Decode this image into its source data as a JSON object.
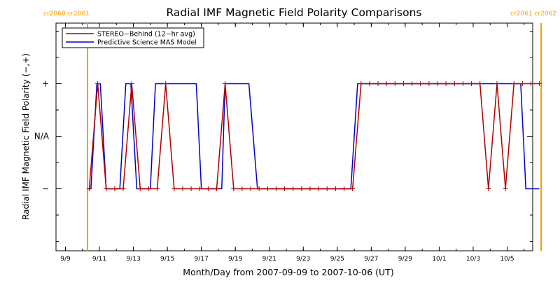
{
  "chart_data": {
    "type": "line",
    "title": "Radial IMF Magnetic Field Polarity Comparisons",
    "xlabel": "Month/Day from 2007-09-09 to 2007-10-06 (UT)",
    "ylabel": "Radial IMF Magnetic Field Polarity (−,+)",
    "xlim_days": [
      0,
      28
    ],
    "x_ticks": [
      {
        "day": 0,
        "label": "9/9"
      },
      {
        "day": 2,
        "label": "9/11"
      },
      {
        "day": 4,
        "label": "9/13"
      },
      {
        "day": 6,
        "label": "9/15"
      },
      {
        "day": 8,
        "label": "9/17"
      },
      {
        "day": 10,
        "label": "9/19"
      },
      {
        "day": 12,
        "label": "9/21"
      },
      {
        "day": 14,
        "label": "9/23"
      },
      {
        "day": 16,
        "label": "9/25"
      },
      {
        "day": 18,
        "label": "9/27"
      },
      {
        "day": 20,
        "label": "9/29"
      },
      {
        "day": 22,
        "label": "10/1"
      },
      {
        "day": 24,
        "label": "10/3"
      },
      {
        "day": 26,
        "label": "10/5"
      }
    ],
    "y_levels": [
      {
        "value": 1,
        "label": "+"
      },
      {
        "value": 0,
        "label": "N/A"
      },
      {
        "value": -1,
        "label": "−"
      }
    ],
    "ylim": [
      -2,
      2
    ],
    "carrington_markers": [
      {
        "day": 1.3,
        "label": "cr2060 cr2061"
      },
      {
        "day": 28.0,
        "label": "cr2061 cr2062"
      }
    ],
    "legend": {
      "position": "top-left",
      "entries": [
        {
          "label": "STEREO−Behind (12−hr avg)",
          "color": "#b00000"
        },
        {
          "label": "Predictive Science MAS Model",
          "color": "#0000cc"
        }
      ]
    },
    "colors": {
      "stereo": "#b00000",
      "model": "#0000cc",
      "marker": "#ff9900"
    },
    "series": [
      {
        "name": "STEREO−Behind (12−hr avg)",
        "marker": "plus",
        "points": [
          [
            1.4,
            -1
          ],
          [
            1.9,
            1
          ],
          [
            2.4,
            -1
          ],
          [
            2.9,
            -1
          ],
          [
            3.4,
            -1
          ],
          [
            3.9,
            1
          ],
          [
            4.4,
            -1
          ],
          [
            4.9,
            -1
          ],
          [
            5.4,
            -1
          ],
          [
            5.9,
            1
          ],
          [
            6.4,
            -1
          ],
          [
            6.9,
            -1
          ],
          [
            7.4,
            -1
          ],
          [
            7.9,
            -1
          ],
          [
            8.4,
            -1
          ],
          [
            8.9,
            -1
          ],
          [
            9.4,
            1
          ],
          [
            9.9,
            -1
          ],
          [
            10.4,
            -1
          ],
          [
            10.9,
            -1
          ],
          [
            11.4,
            -1
          ],
          [
            11.9,
            -1
          ],
          [
            12.4,
            -1
          ],
          [
            12.9,
            -1
          ],
          [
            13.4,
            -1
          ],
          [
            13.9,
            -1
          ],
          [
            14.4,
            -1
          ],
          [
            14.9,
            -1
          ],
          [
            15.4,
            -1
          ],
          [
            15.9,
            -1
          ],
          [
            16.4,
            -1
          ],
          [
            16.9,
            -1
          ],
          [
            17.4,
            1
          ],
          [
            17.9,
            1
          ],
          [
            18.4,
            1
          ],
          [
            18.9,
            1
          ],
          [
            19.4,
            1
          ],
          [
            19.9,
            1
          ],
          [
            20.4,
            1
          ],
          [
            20.9,
            1
          ],
          [
            21.4,
            1
          ],
          [
            21.9,
            1
          ],
          [
            22.4,
            1
          ],
          [
            22.9,
            1
          ],
          [
            23.4,
            1
          ],
          [
            23.9,
            1
          ],
          [
            24.4,
            1
          ],
          [
            24.9,
            -1
          ],
          [
            25.4,
            1
          ],
          [
            25.9,
            -1
          ],
          [
            26.4,
            1
          ],
          [
            26.9,
            1
          ],
          [
            27.4,
            1
          ],
          [
            27.9,
            1
          ]
        ]
      },
      {
        "name": "Predictive Science MAS Model",
        "marker": "none",
        "points": [
          [
            1.3,
            -1
          ],
          [
            1.5,
            -1
          ],
          [
            1.85,
            1
          ],
          [
            2.05,
            1
          ],
          [
            2.4,
            -1
          ],
          [
            3.2,
            -1
          ],
          [
            3.55,
            1
          ],
          [
            3.85,
            1
          ],
          [
            4.2,
            -1
          ],
          [
            5.0,
            -1
          ],
          [
            5.3,
            1
          ],
          [
            7.7,
            1
          ],
          [
            8.0,
            -1
          ],
          [
            9.2,
            -1
          ],
          [
            9.4,
            1
          ],
          [
            10.8,
            1
          ],
          [
            11.3,
            -1
          ],
          [
            16.8,
            -1
          ],
          [
            17.2,
            1
          ],
          [
            26.8,
            1
          ],
          [
            27.1,
            -1
          ],
          [
            27.9,
            -1
          ]
        ]
      }
    ]
  }
}
